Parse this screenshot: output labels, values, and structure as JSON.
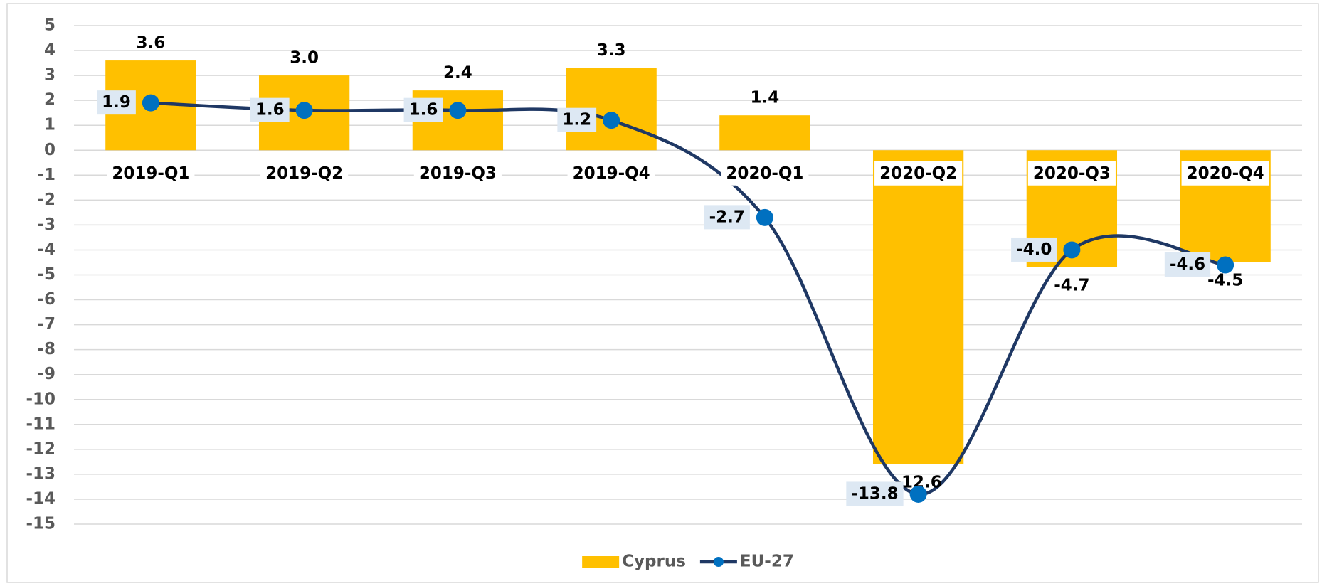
{
  "chart_data": {
    "type": "combo",
    "categories": [
      "2019-Q1",
      "2019-Q2",
      "2019-Q3",
      "2019-Q4",
      "2020-Q1",
      "2020-Q2",
      "2020-Q3",
      "2020-Q4"
    ],
    "series": [
      {
        "name": "Cyprus",
        "type": "bar",
        "color": "#ffc000",
        "values": [
          3.6,
          3.0,
          2.4,
          3.3,
          1.4,
          -12.6,
          -4.7,
          -4.5
        ],
        "value_labels": [
          "3.6",
          "3.0",
          "2.4",
          "3.3",
          "1.4",
          "-12.6",
          "-4.7",
          "-4.5"
        ]
      },
      {
        "name": "EU-27",
        "type": "line",
        "color": "#1f3864",
        "marker_color": "#0070c0",
        "values": [
          1.9,
          1.6,
          1.6,
          1.2,
          -2.7,
          -13.8,
          -4.0,
          -4.6
        ],
        "value_labels": [
          "1.9",
          "1.6",
          "1.6",
          "1.2",
          "-2.7",
          "-13.8",
          "-4.0",
          "-4.6"
        ]
      }
    ],
    "ylim": [
      -15,
      5
    ],
    "yticks": [
      -15,
      -14,
      -13,
      -12,
      -11,
      -10,
      -9,
      -8,
      -7,
      -6,
      -5,
      -4,
      -3,
      -2,
      -1,
      0,
      1,
      2,
      3,
      4,
      5
    ],
    "grid": true,
    "legend": "bottom"
  }
}
